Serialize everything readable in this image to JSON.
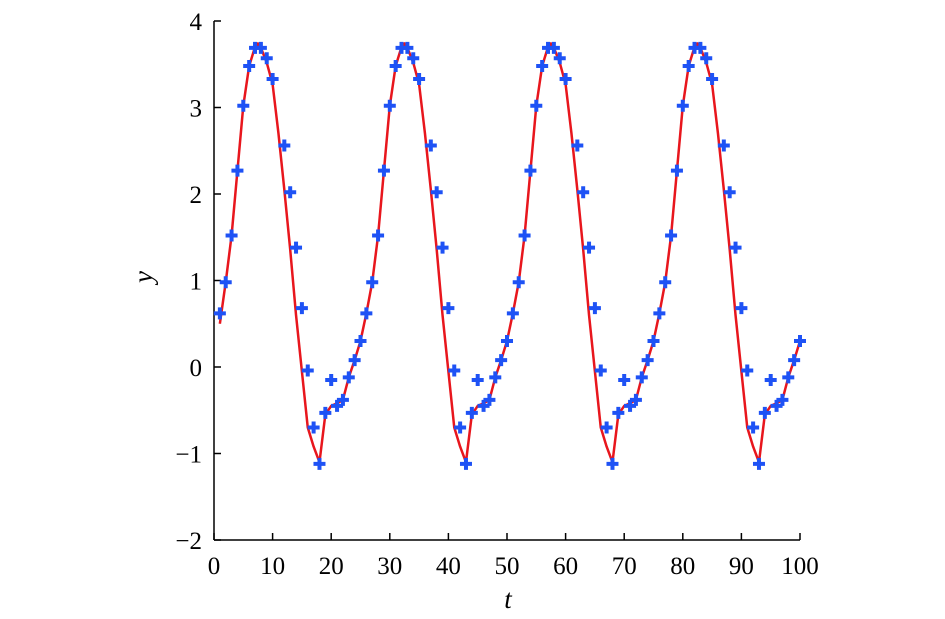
{
  "chart_data": {
    "type": "line",
    "title": "",
    "xlabel": "t",
    "ylabel": "y",
    "xlim": [
      0,
      100
    ],
    "ylim": [
      -2,
      4
    ],
    "xticks": [
      "0",
      "10",
      "20",
      "30",
      "40",
      "50",
      "60",
      "70",
      "80",
      "90",
      "100"
    ],
    "yticks": [
      "−2",
      "−1",
      "0",
      "1",
      "2",
      "3",
      "4"
    ],
    "grid": false,
    "series": [
      {
        "style": "line",
        "color": "#e8161d",
        "x": [
          1,
          2,
          3,
          4,
          5,
          6,
          7,
          7.5,
          8,
          9,
          10,
          11,
          12,
          13,
          14,
          15,
          16,
          17,
          18,
          19,
          20,
          21,
          22,
          23,
          24,
          25,
          26,
          27,
          28,
          29,
          30,
          31,
          32,
          32.5,
          33,
          34,
          35,
          36,
          37,
          38,
          39,
          40,
          41,
          42,
          43,
          44,
          45,
          46,
          47,
          48,
          49,
          50,
          51,
          52,
          53,
          54,
          55,
          56,
          57,
          57.5,
          58,
          59,
          60,
          61,
          62,
          63,
          64,
          65,
          66,
          67,
          68,
          69,
          70,
          71,
          72,
          73,
          74,
          75,
          76,
          77,
          78,
          79,
          80,
          81,
          82,
          82.5,
          83,
          84,
          85,
          86,
          87,
          88,
          89,
          90,
          91,
          92,
          93,
          94,
          95,
          96,
          97,
          98,
          99,
          100
        ],
        "y": [
          0.5,
          0.98,
          1.52,
          2.27,
          3.02,
          3.48,
          3.7,
          3.74,
          3.69,
          3.52,
          3.27,
          2.7,
          2.05,
          1.36,
          0.6,
          -0.05,
          -0.7,
          -0.92,
          -1.1,
          -0.55,
          -0.45,
          -0.42,
          -0.38,
          -0.12,
          0.08,
          0.3,
          0.62,
          0.98,
          1.52,
          2.27,
          3.02,
          3.48,
          3.7,
          3.74,
          3.69,
          3.52,
          3.27,
          2.7,
          2.05,
          1.36,
          0.6,
          -0.05,
          -0.7,
          -0.92,
          -1.1,
          -0.55,
          -0.45,
          -0.42,
          -0.38,
          -0.12,
          0.08,
          0.3,
          0.62,
          0.98,
          1.52,
          2.27,
          3.02,
          3.48,
          3.7,
          3.74,
          3.69,
          3.52,
          3.27,
          2.7,
          2.05,
          1.36,
          0.6,
          -0.05,
          -0.7,
          -0.92,
          -1.1,
          -0.55,
          -0.45,
          -0.42,
          -0.38,
          -0.12,
          0.08,
          0.3,
          0.62,
          0.98,
          1.52,
          2.27,
          3.02,
          3.48,
          3.7,
          3.74,
          3.69,
          3.52,
          3.27,
          2.7,
          2.05,
          1.36,
          0.6,
          -0.05,
          -0.7,
          -0.92,
          -1.1,
          -0.55,
          -0.45,
          -0.42,
          -0.38,
          -0.12,
          0.08,
          0.3
        ]
      },
      {
        "style": "marker",
        "marker": "plus",
        "color": "#1e52f5",
        "x": [
          1,
          2,
          3,
          4,
          5,
          6,
          7,
          8,
          9,
          10,
          12,
          13,
          14,
          15,
          16,
          17,
          18,
          19,
          20,
          21,
          22,
          23,
          24,
          25,
          26,
          27,
          28,
          29,
          30,
          31,
          32,
          33,
          34,
          35,
          37,
          38,
          39,
          40,
          41,
          42,
          43,
          44,
          45,
          46,
          47,
          48,
          49,
          50,
          51,
          52,
          53,
          54,
          55,
          56,
          57,
          58,
          59,
          60,
          62,
          63,
          64,
          65,
          66,
          67,
          68,
          69,
          70,
          71,
          72,
          73,
          74,
          75,
          76,
          77,
          78,
          79,
          80,
          81,
          82,
          83,
          84,
          85,
          87,
          88,
          89,
          90,
          91,
          92,
          93,
          94,
          95,
          96,
          97,
          98,
          99,
          100
        ],
        "y": [
          0.62,
          0.98,
          1.52,
          2.27,
          3.02,
          3.48,
          3.69,
          3.69,
          3.57,
          3.33,
          2.56,
          2.02,
          1.38,
          0.68,
          -0.04,
          -0.7,
          -1.12,
          -0.53,
          -0.15,
          -0.45,
          -0.38,
          -0.12,
          0.08,
          0.3,
          0.62,
          0.98,
          1.52,
          2.27,
          3.02,
          3.48,
          3.69,
          3.69,
          3.57,
          3.33,
          2.56,
          2.02,
          1.38,
          0.68,
          -0.04,
          -0.7,
          -1.12,
          -0.53,
          -0.15,
          -0.45,
          -0.38,
          -0.12,
          0.08,
          0.3,
          0.62,
          0.98,
          1.52,
          2.27,
          3.02,
          3.48,
          3.69,
          3.69,
          3.57,
          3.33,
          2.56,
          2.02,
          1.38,
          0.68,
          -0.04,
          -0.7,
          -1.12,
          -0.53,
          -0.15,
          -0.45,
          -0.38,
          -0.12,
          0.08,
          0.3,
          0.62,
          0.98,
          1.52,
          2.27,
          3.02,
          3.48,
          3.69,
          3.69,
          3.57,
          3.33,
          2.56,
          2.02,
          1.38,
          0.68,
          -0.04,
          -0.7,
          -1.12,
          -0.53,
          -0.15,
          -0.45,
          -0.38,
          -0.12,
          0.08,
          0.3
        ]
      }
    ]
  }
}
